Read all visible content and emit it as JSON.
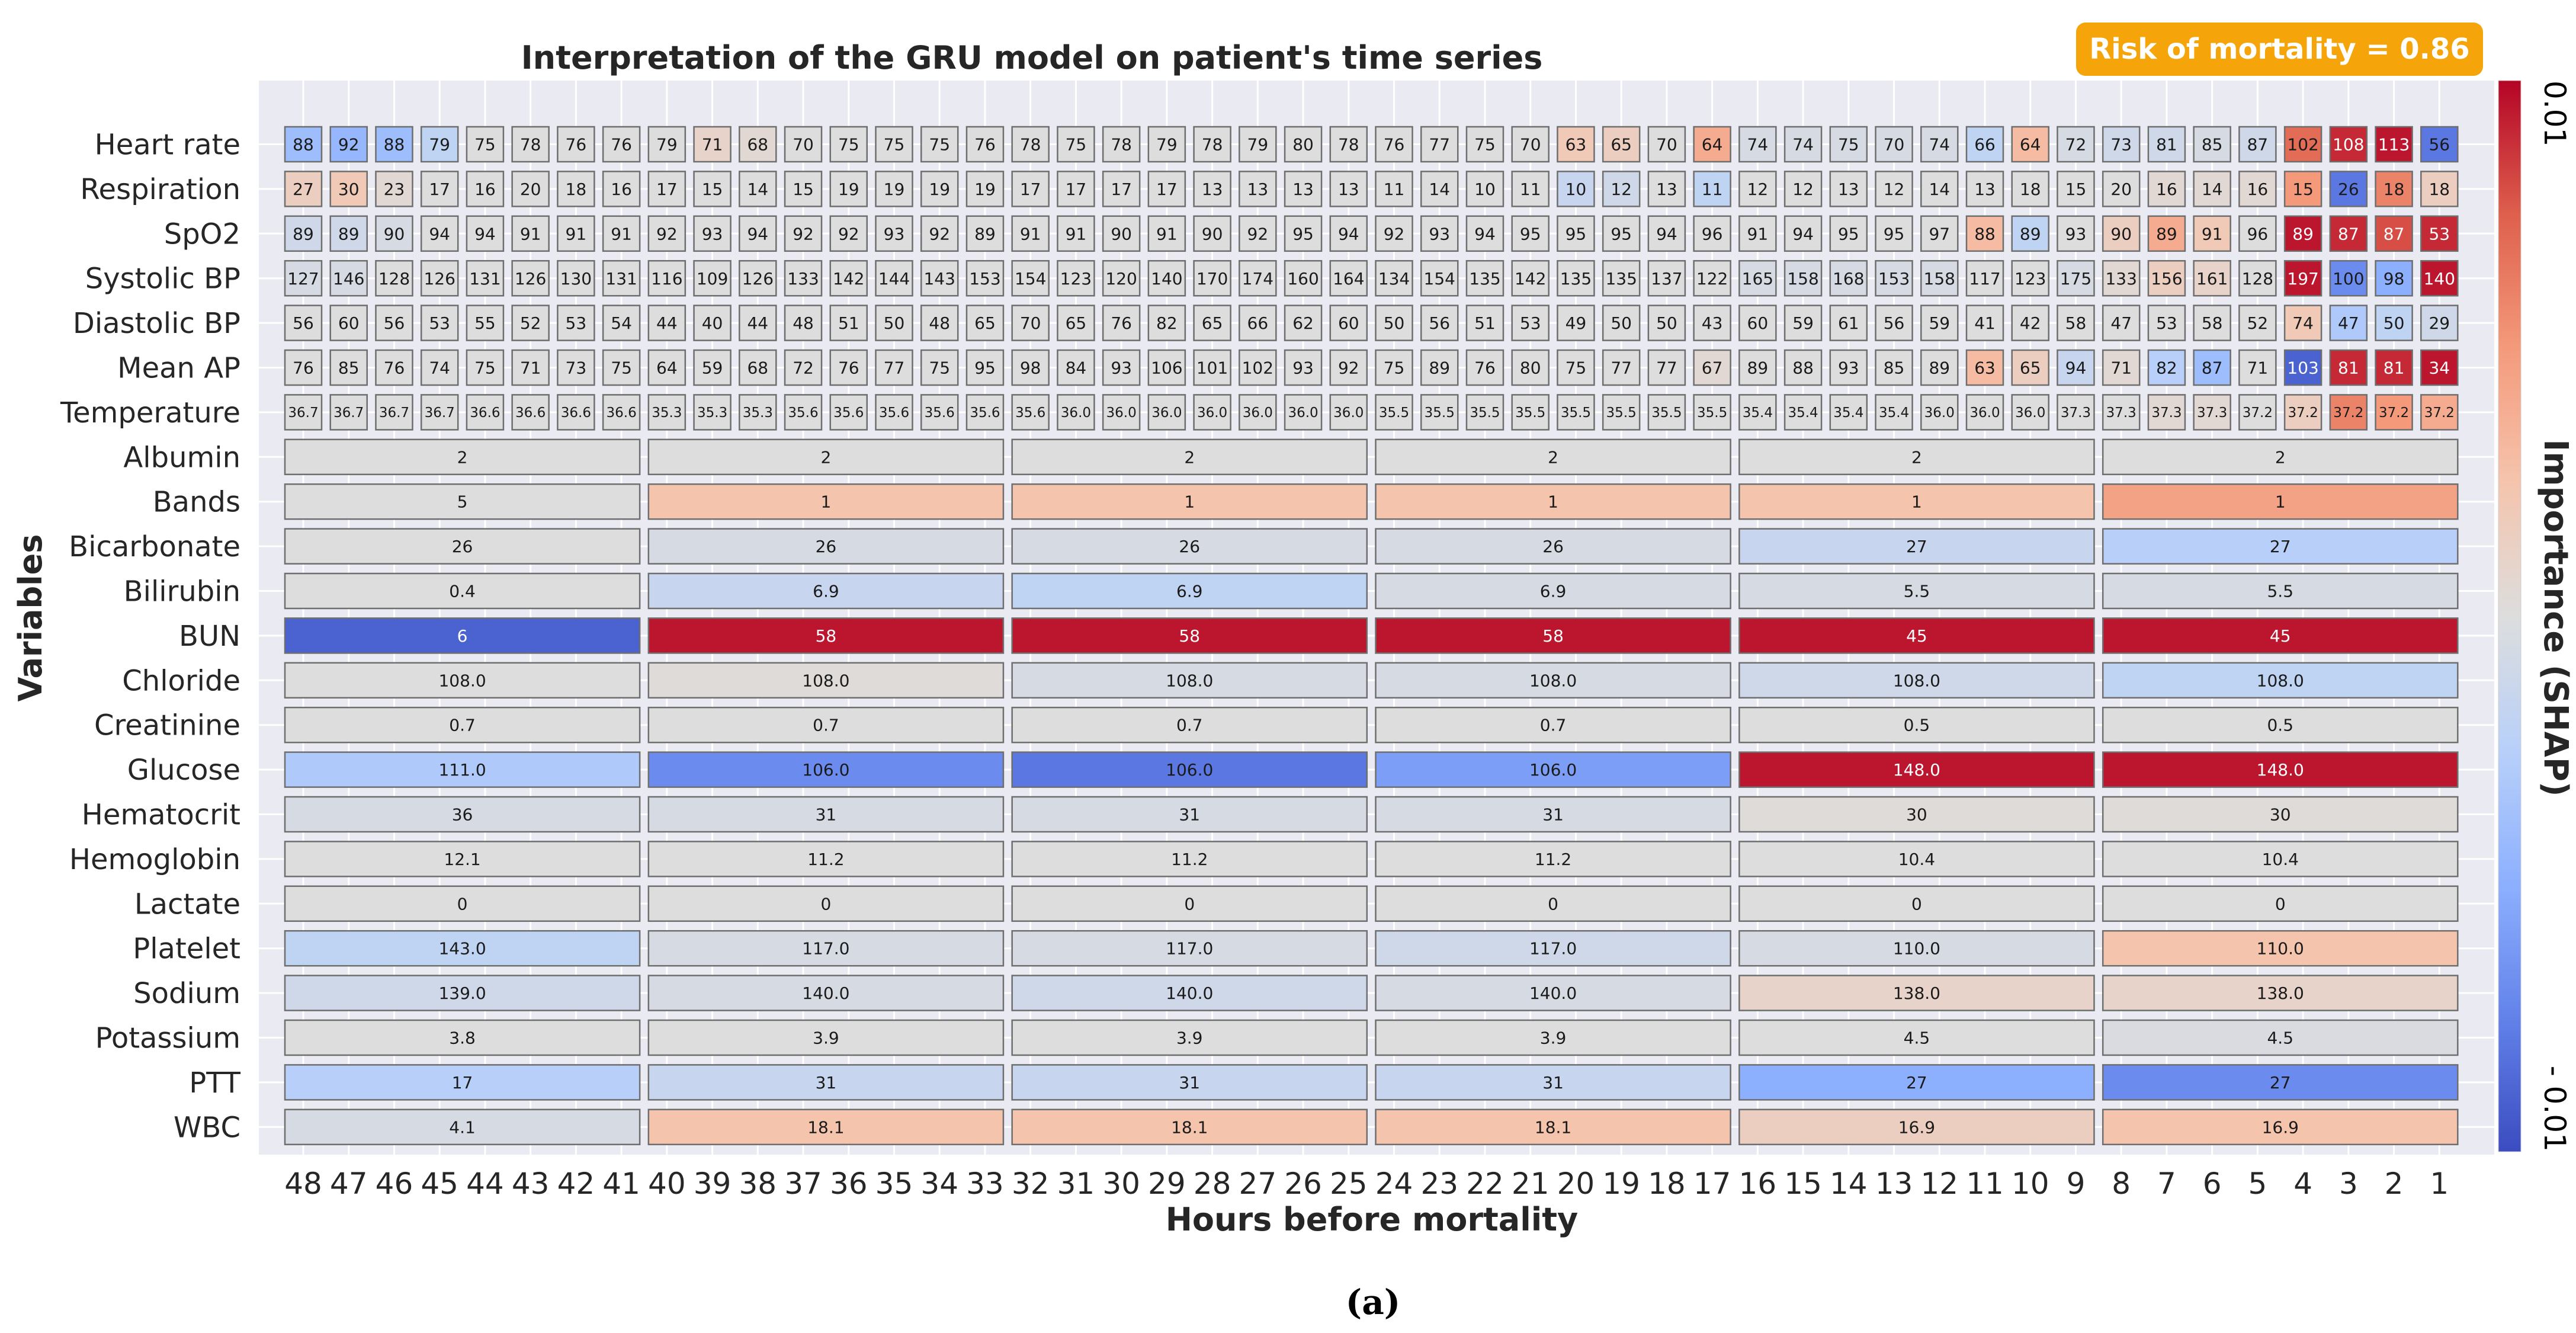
{
  "chart_data": {
    "type": "heatmap",
    "title": "Interpretation of the GRU model on patient's time series",
    "xlabel": "Hours before mortality",
    "ylabel": "Variables",
    "caption": "(a)",
    "risk_badge": "Risk of mortality = 0.86",
    "colorbar": {
      "label": "Importance (SHAP)",
      "max_label": "0.01",
      "min_label": "- 0.01",
      "vmin": -0.01,
      "vmax": 0.01,
      "colormap": "coolwarm"
    },
    "hours": [
      48,
      47,
      46,
      45,
      44,
      43,
      42,
      41,
      40,
      39,
      38,
      37,
      36,
      35,
      34,
      33,
      32,
      31,
      30,
      29,
      28,
      27,
      26,
      25,
      24,
      23,
      22,
      21,
      20,
      19,
      18,
      17,
      16,
      15,
      14,
      13,
      12,
      11,
      10,
      9,
      8,
      7,
      6,
      5,
      4,
      3,
      2,
      1
    ],
    "hourly_variables": [
      {
        "name": "Heart rate",
        "values": [
          "88",
          "92",
          "88",
          "79",
          "75",
          "78",
          "76",
          "76",
          "79",
          "71",
          "68",
          "70",
          "75",
          "75",
          "75",
          "76",
          "78",
          "75",
          "78",
          "79",
          "78",
          "79",
          "80",
          "78",
          "76",
          "77",
          "75",
          "70",
          "63",
          "65",
          "70",
          "64",
          "74",
          "74",
          "75",
          "70",
          "74",
          "66",
          "64",
          "72",
          "73",
          "81",
          "85",
          "87",
          "102",
          "108",
          "113",
          "56"
        ],
        "importance": [
          -0.004,
          -0.0045,
          -0.004,
          -0.002,
          0,
          0,
          0,
          0,
          0,
          0.001,
          0.0005,
          0,
          0,
          0,
          0,
          0,
          0,
          0,
          0,
          0,
          0,
          0,
          0,
          0,
          0,
          0,
          0,
          0,
          0.002,
          0.0015,
          0,
          0.004,
          -0.0005,
          -0.0005,
          -0.0005,
          -0.0005,
          -0.0005,
          -0.002,
          0.003,
          -0.0005,
          -0.001,
          -0.001,
          -0.0005,
          -0.001,
          0.007,
          0.009,
          0.0095,
          -0.008
        ]
      },
      {
        "name": "Respiration",
        "values": [
          "27",
          "30",
          "23",
          "17",
          "16",
          "20",
          "18",
          "16",
          "17",
          "15",
          "14",
          "15",
          "19",
          "19",
          "19",
          "19",
          "17",
          "17",
          "17",
          "17",
          "13",
          "13",
          "13",
          "13",
          "11",
          "14",
          "10",
          "11",
          "10",
          "12",
          "13",
          "11",
          "12",
          "12",
          "13",
          "12",
          "14",
          "13",
          "18",
          "15",
          "20",
          "16",
          "14",
          "16",
          "15",
          "26",
          "18",
          "18"
        ],
        "importance": [
          0.0015,
          0.002,
          0.0005,
          0,
          0,
          0,
          0,
          0,
          0,
          0,
          0,
          0,
          0,
          0,
          0,
          0,
          0,
          0,
          0,
          0,
          0,
          0,
          0,
          0,
          0,
          0,
          0,
          0,
          -0.0015,
          -0.001,
          0,
          -0.002,
          0,
          0,
          0,
          0,
          0,
          0,
          0,
          0,
          0,
          0.0005,
          0.0005,
          0.0005,
          0.005,
          -0.008,
          0.006,
          0.0015
        ]
      },
      {
        "name": "SpO2",
        "values": [
          "89",
          "89",
          "90",
          "94",
          "94",
          "91",
          "91",
          "91",
          "92",
          "93",
          "94",
          "92",
          "92",
          "93",
          "92",
          "89",
          "91",
          "91",
          "90",
          "91",
          "90",
          "92",
          "95",
          "94",
          "92",
          "93",
          "94",
          "95",
          "95",
          "95",
          "94",
          "96",
          "91",
          "94",
          "95",
          "95",
          "97",
          "88",
          "89",
          "93",
          "90",
          "89",
          "91",
          "96",
          "89",
          "87",
          "87",
          "53"
        ],
        "importance": [
          -0.001,
          -0.001,
          -0.0005,
          0,
          0,
          0,
          0,
          0,
          0,
          0,
          0,
          0,
          0,
          0,
          0,
          0,
          0,
          0,
          0,
          0,
          0,
          0,
          0,
          0,
          0,
          0,
          0,
          0,
          0,
          0,
          0,
          0,
          0,
          0,
          0,
          0,
          0,
          0.003,
          -0.002,
          0,
          0.0015,
          0.004,
          0.002,
          0,
          0.0095,
          0.009,
          0.008,
          0.009
        ]
      },
      {
        "name": "Systolic BP",
        "values": [
          "127",
          "146",
          "128",
          "126",
          "131",
          "126",
          "130",
          "131",
          "116",
          "109",
          "126",
          "133",
          "142",
          "144",
          "143",
          "153",
          "154",
          "123",
          "120",
          "140",
          "170",
          "174",
          "160",
          "164",
          "134",
          "154",
          "135",
          "142",
          "135",
          "135",
          "137",
          "122",
          "165",
          "158",
          "168",
          "153",
          "158",
          "117",
          "123",
          "175",
          "133",
          "156",
          "161",
          "128",
          "197",
          "100",
          "98",
          "140"
        ],
        "importance": [
          -0.0005,
          -0.0005,
          0,
          0,
          0,
          0,
          0,
          0,
          0,
          0,
          0,
          0,
          0,
          0,
          0,
          0,
          0,
          0,
          0,
          0,
          0,
          0,
          0,
          0,
          0,
          0,
          0,
          0,
          0,
          0,
          0,
          0,
          -0.0005,
          -0.0005,
          -0.0005,
          -0.0005,
          -0.0005,
          0,
          0,
          -0.0005,
          0.0005,
          0.0015,
          0.001,
          0,
          0.0095,
          -0.007,
          -0.005,
          0.0095
        ]
      },
      {
        "name": "Diastolic BP",
        "values": [
          "56",
          "60",
          "56",
          "53",
          "55",
          "52",
          "53",
          "54",
          "44",
          "40",
          "44",
          "48",
          "51",
          "50",
          "48",
          "65",
          "70",
          "65",
          "76",
          "82",
          "65",
          "66",
          "62",
          "60",
          "50",
          "56",
          "51",
          "53",
          "49",
          "50",
          "50",
          "43",
          "60",
          "59",
          "61",
          "56",
          "59",
          "41",
          "42",
          "58",
          "47",
          "53",
          "58",
          "52",
          "74",
          "47",
          "50",
          "29"
        ],
        "importance": [
          0,
          0,
          0,
          0,
          0,
          0,
          0,
          0,
          0,
          0,
          0,
          0,
          0,
          0,
          0,
          0,
          0,
          0,
          0,
          0,
          0,
          0,
          0,
          0,
          0,
          0,
          0,
          0,
          0,
          0,
          0,
          0,
          0,
          0,
          0,
          0,
          0,
          0,
          0,
          0,
          0,
          0,
          0,
          0,
          0.002,
          -0.003,
          -0.002,
          -0.001
        ]
      },
      {
        "name": "Mean AP",
        "values": [
          "76",
          "85",
          "76",
          "74",
          "75",
          "71",
          "73",
          "75",
          "64",
          "59",
          "68",
          "72",
          "76",
          "77",
          "75",
          "95",
          "98",
          "84",
          "93",
          "106",
          "101",
          "102",
          "93",
          "92",
          "75",
          "89",
          "76",
          "80",
          "75",
          "77",
          "77",
          "67",
          "89",
          "88",
          "93",
          "85",
          "89",
          "63",
          "65",
          "94",
          "71",
          "82",
          "87",
          "71",
          "103",
          "81",
          "81",
          "34"
        ],
        "importance": [
          0,
          0,
          0,
          0,
          0,
          0,
          0,
          0,
          0,
          0,
          0,
          0,
          0,
          0,
          0,
          0,
          0,
          0,
          0,
          0,
          0,
          0,
          0,
          0,
          0,
          0,
          0,
          0,
          0,
          0,
          0,
          0.0005,
          0,
          0,
          0,
          0,
          0,
          0.003,
          0.0015,
          -0.0015,
          0.0005,
          -0.0025,
          -0.004,
          0,
          -0.009,
          0.009,
          0.009,
          0.0095
        ]
      },
      {
        "name": "Temperature",
        "values": [
          "36.7",
          "36.7",
          "36.7",
          "36.7",
          "36.6",
          "36.6",
          "36.6",
          "36.6",
          "35.3",
          "35.3",
          "35.3",
          "35.6",
          "35.6",
          "35.6",
          "35.6",
          "35.6",
          "35.6",
          "36.0",
          "36.0",
          "36.0",
          "36.0",
          "36.0",
          "36.0",
          "36.0",
          "35.5",
          "35.5",
          "35.5",
          "35.5",
          "35.5",
          "35.5",
          "35.5",
          "35.5",
          "35.4",
          "35.4",
          "35.4",
          "35.4",
          "36.0",
          "36.0",
          "36.0",
          "37.3",
          "37.3",
          "37.3",
          "37.3",
          "37.2",
          "37.2",
          "37.2",
          "37.2",
          "37.2"
        ],
        "importance": [
          0,
          0,
          0,
          0,
          0,
          0,
          0,
          0,
          0,
          0,
          0,
          0,
          0,
          0,
          0,
          0,
          0,
          0,
          0,
          0,
          0,
          0,
          0,
          0,
          0,
          0,
          0,
          0,
          0,
          0,
          0,
          0,
          0,
          0,
          0,
          0,
          0,
          0,
          0,
          0,
          0,
          0.0005,
          0.0005,
          0,
          0.0015,
          0.006,
          0.005,
          0.004
        ]
      }
    ],
    "lab_variables": [
      {
        "name": "Albumin",
        "values": [
          "2",
          "2",
          "2",
          "2",
          "2",
          "2"
        ],
        "importance": [
          0,
          0,
          0,
          0,
          0,
          0
        ]
      },
      {
        "name": "Bands",
        "values": [
          "5",
          "1",
          "1",
          "1",
          "1",
          "1"
        ],
        "importance": [
          0,
          0.0025,
          0.0025,
          0.0025,
          0.0025,
          0.0045
        ]
      },
      {
        "name": "Bicarbonate",
        "values": [
          "26",
          "26",
          "26",
          "26",
          "27",
          "27"
        ],
        "importance": [
          0,
          -0.0005,
          -0.0005,
          -0.0005,
          -0.0015,
          -0.0025
        ]
      },
      {
        "name": "Bilirubin",
        "values": [
          "0.4",
          "6.9",
          "6.9",
          "6.9",
          "5.5",
          "5.5"
        ],
        "importance": [
          0,
          -0.0015,
          -0.002,
          -0.0005,
          -0.0005,
          -0.0005
        ]
      },
      {
        "name": "BUN",
        "values": [
          "6",
          "58",
          "58",
          "58",
          "45",
          "45"
        ],
        "importance": [
          -0.009,
          0.0095,
          0.0095,
          0.0095,
          0.0095,
          0.0095
        ]
      },
      {
        "name": "Chloride",
        "values": [
          "108.0",
          "108.0",
          "108.0",
          "108.0",
          "108.0",
          "108.0"
        ],
        "importance": [
          0,
          0.0002,
          -0.0005,
          -0.0005,
          -0.001,
          -0.002
        ]
      },
      {
        "name": "Creatinine",
        "values": [
          "0.7",
          "0.7",
          "0.7",
          "0.7",
          "0.5",
          "0.5"
        ],
        "importance": [
          0,
          0,
          0,
          0,
          0,
          0
        ]
      },
      {
        "name": "Glucose",
        "values": [
          "111.0",
          "106.0",
          "106.0",
          "106.0",
          "148.0",
          "148.0"
        ],
        "importance": [
          -0.003,
          -0.007,
          -0.008,
          -0.006,
          0.0095,
          0.0095
        ]
      },
      {
        "name": "Hematocrit",
        "values": [
          "36",
          "31",
          "31",
          "31",
          "30",
          "30"
        ],
        "importance": [
          -0.0005,
          -0.0005,
          -0.0005,
          -0.0005,
          0.0002,
          0.0002
        ]
      },
      {
        "name": "Hemoglobin",
        "values": [
          "12.1",
          "11.2",
          "11.2",
          "11.2",
          "10.4",
          "10.4"
        ],
        "importance": [
          0,
          0,
          0,
          0,
          0,
          0
        ]
      },
      {
        "name": "Lactate",
        "values": [
          "0",
          "0",
          "0",
          "0",
          "0",
          "0"
        ],
        "importance": [
          0,
          0,
          0,
          0,
          0,
          0
        ]
      },
      {
        "name": "Platelet",
        "values": [
          "143.0",
          "117.0",
          "117.0",
          "117.0",
          "110.0",
          "110.0"
        ],
        "importance": [
          -0.002,
          -0.0005,
          -0.0005,
          -0.001,
          -0.0005,
          0.0025
        ]
      },
      {
        "name": "Sodium",
        "values": [
          "139.0",
          "140.0",
          "140.0",
          "140.0",
          "138.0",
          "138.0"
        ],
        "importance": [
          -0.001,
          -0.0005,
          -0.001,
          -0.0005,
          0.001,
          0.001
        ]
      },
      {
        "name": "Potassium",
        "values": [
          "3.8",
          "3.9",
          "3.9",
          "3.9",
          "4.5",
          "4.5"
        ],
        "importance": [
          0,
          0,
          0,
          0,
          0,
          -0.0003
        ]
      },
      {
        "name": "PTT",
        "values": [
          "17",
          "31",
          "31",
          "31",
          "27",
          "27"
        ],
        "importance": [
          -0.0025,
          -0.0015,
          -0.0015,
          -0.0015,
          -0.005,
          -0.007
        ]
      },
      {
        "name": "WBC",
        "values": [
          "4.1",
          "18.1",
          "18.1",
          "18.1",
          "16.9",
          "16.9"
        ],
        "importance": [
          -0.0005,
          0.0025,
          0.0025,
          0.0025,
          0.0015,
          0.0025
        ]
      }
    ]
  }
}
